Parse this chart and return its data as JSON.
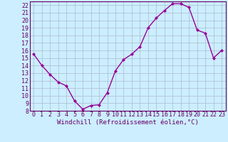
{
  "hours": [
    0,
    1,
    2,
    3,
    4,
    5,
    6,
    7,
    8,
    9,
    10,
    11,
    12,
    13,
    14,
    15,
    16,
    17,
    18,
    19,
    20,
    21,
    22,
    23
  ],
  "values": [
    15.5,
    14.0,
    12.8,
    11.8,
    11.3,
    9.3,
    8.2,
    8.7,
    8.8,
    10.4,
    13.3,
    14.8,
    15.5,
    16.5,
    19.0,
    20.3,
    21.3,
    22.2,
    22.2,
    21.7,
    18.7,
    18.3,
    15.0,
    16.0
  ],
  "line_color": "#990099",
  "marker": "D",
  "marker_size": 2.0,
  "bg_color": "#cceeff",
  "grid_color": "#aabbcc",
  "xlabel": "Windchill (Refroidissement éolien,°C)",
  "ylim": [
    8,
    22.5
  ],
  "xlim": [
    -0.5,
    23.5
  ],
  "yticks": [
    8,
    9,
    10,
    11,
    12,
    13,
    14,
    15,
    16,
    17,
    18,
    19,
    20,
    21,
    22
  ],
  "xticks": [
    0,
    1,
    2,
    3,
    4,
    5,
    6,
    7,
    8,
    9,
    10,
    11,
    12,
    13,
    14,
    15,
    16,
    17,
    18,
    19,
    20,
    21,
    22,
    23
  ],
  "axis_color": "#660066",
  "tick_color": "#660066",
  "label_fontsize": 6.5,
  "tick_fontsize": 6.0,
  "line_width": 1.0
}
